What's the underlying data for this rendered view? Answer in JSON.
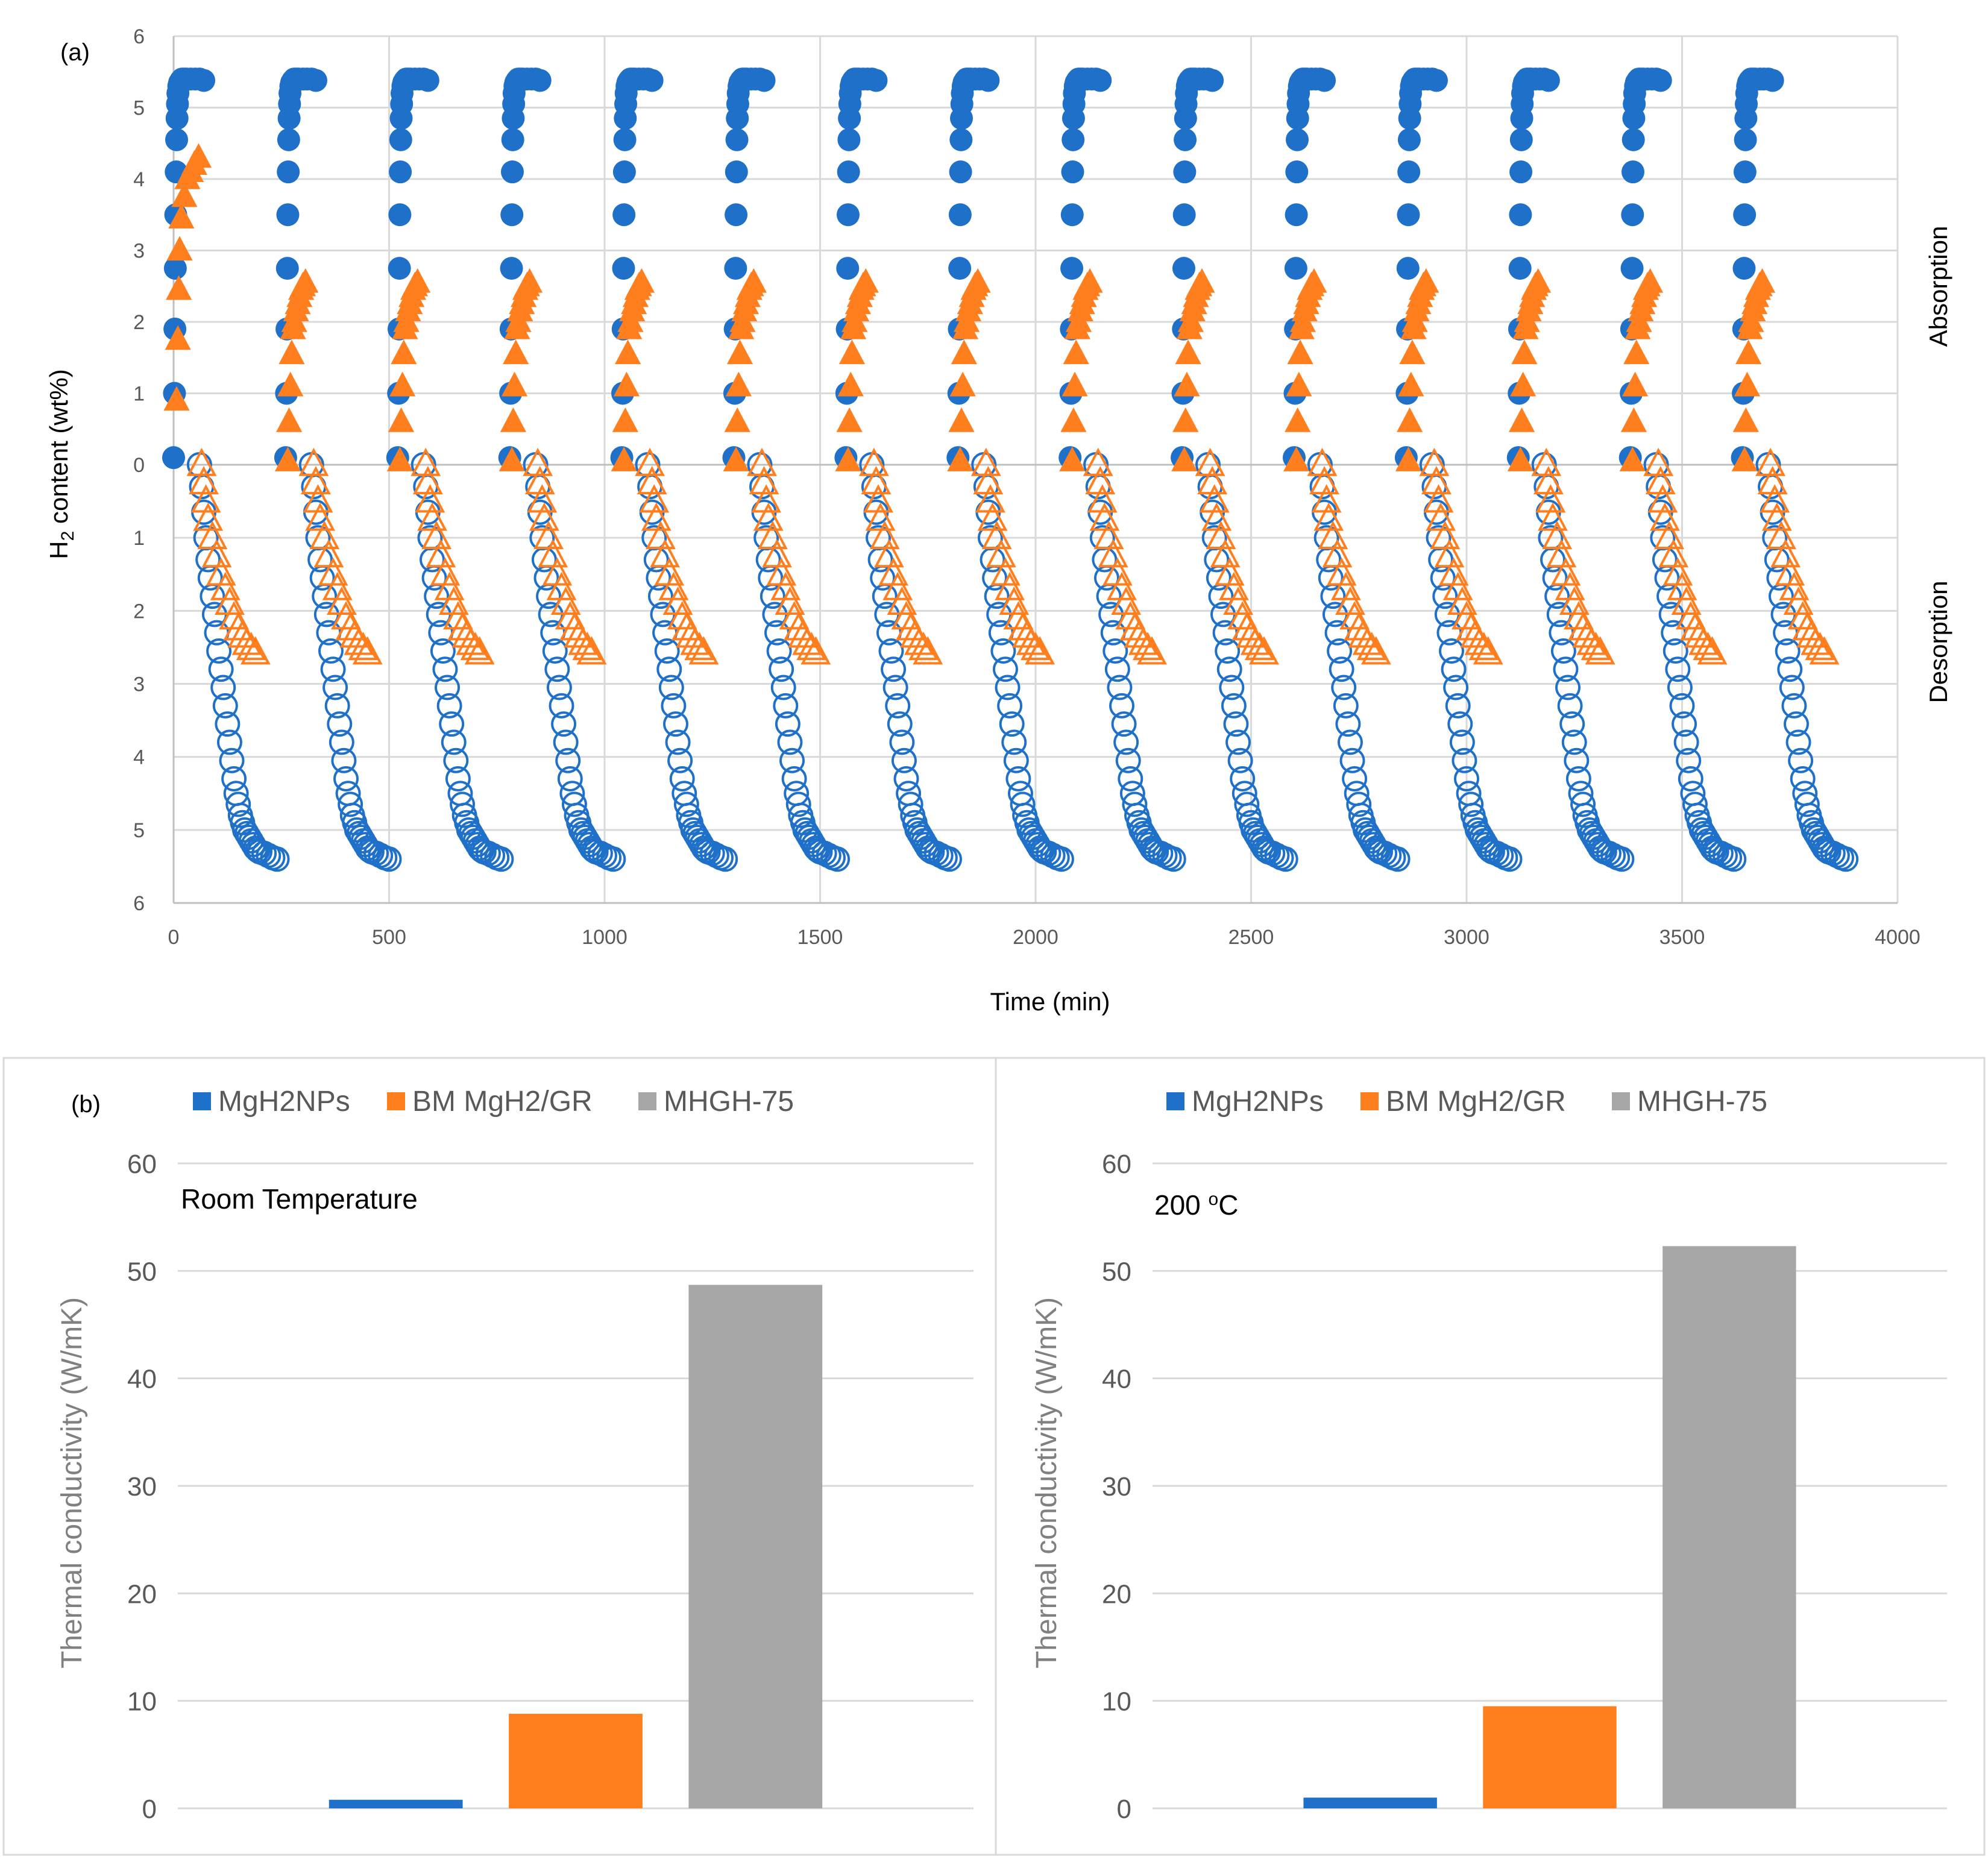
{
  "colors": {
    "blue": "#1f70c8",
    "orange": "#ff7f1f",
    "gray": "#a6a6a6",
    "grid": "#d9d9d9",
    "axis": "#bfbfbf"
  },
  "panel_a_label": "(a)",
  "panel_b_label": "(b)",
  "chart_data": [
    {
      "type": "scatter",
      "panel": "(a)",
      "title": "",
      "xlabel": "Time (min)",
      "ylabel": "H2 content (wt%)",
      "ylabel_parts": {
        "main": "H",
        "sub": "2",
        "rest": " content (wt%)"
      },
      "xlim": [
        0,
        4000
      ],
      "x_ticks": [
        0,
        500,
        1000,
        1500,
        2000,
        2500,
        3000,
        3500,
        4000
      ],
      "y_ticks_absorption": [
        0,
        1,
        2,
        3,
        4,
        5,
        6
      ],
      "y_ticks_desorption": [
        1,
        2,
        3,
        4,
        5,
        6
      ],
      "region_labels": {
        "absorption": "Absorption",
        "desorption": "Desorption"
      },
      "grid": true,
      "cycles": 15,
      "cycle_start_times": [
        0,
        260,
        520,
        780,
        1040,
        1300,
        1560,
        1820,
        2080,
        2340,
        2600,
        2860,
        3120,
        3380,
        3640
      ],
      "series": [
        {
          "name": "MgH2NPs absorption",
          "marker": "filled-circle",
          "color": "blue",
          "region": "absorption",
          "cycle_points": [
            [
              0,
              0.1
            ],
            [
              2,
              1.0
            ],
            [
              3,
              1.9
            ],
            [
              4,
              2.75
            ],
            [
              5,
              3.5
            ],
            [
              6,
              4.1
            ],
            [
              7,
              4.55
            ],
            [
              8,
              4.85
            ],
            [
              9,
              5.05
            ],
            [
              10,
              5.2
            ],
            [
              12,
              5.3
            ],
            [
              14,
              5.35
            ],
            [
              17,
              5.38
            ],
            [
              20,
              5.4
            ],
            [
              25,
              5.4
            ],
            [
              30,
              5.4
            ],
            [
              40,
              5.4
            ],
            [
              50,
              5.4
            ],
            [
              60,
              5.4
            ],
            [
              70,
              5.38
            ]
          ]
        },
        {
          "name": "Composite absorption",
          "marker": "filled-triangle",
          "color": "orange",
          "region": "absorption",
          "first_cycle_points": [
            [
              7,
              0.9
            ],
            [
              10,
              1.75
            ],
            [
              12,
              2.45
            ],
            [
              14,
              3.0
            ],
            [
              18,
              3.45
            ],
            [
              25,
              3.75
            ],
            [
              32,
              4.0
            ],
            [
              40,
              4.1
            ],
            [
              48,
              4.2
            ],
            [
              58,
              4.3
            ]
          ],
          "cycle_points": [
            [
              5,
              0.05
            ],
            [
              8,
              0.6
            ],
            [
              11,
              1.1
            ],
            [
              14,
              1.55
            ],
            [
              17,
              1.9
            ],
            [
              20,
              2.0
            ],
            [
              24,
              2.15
            ],
            [
              28,
              2.25
            ],
            [
              32,
              2.35
            ],
            [
              36,
              2.45
            ],
            [
              40,
              2.5
            ],
            [
              46,
              2.55
            ]
          ]
        },
        {
          "name": "MgH2NPs desorption",
          "marker": "open-circle",
          "color": "blue",
          "region": "desorption",
          "cycle_points": [
            [
              60,
              0.0
            ],
            [
              65,
              0.3
            ],
            [
              70,
              0.65
            ],
            [
              75,
              1.0
            ],
            [
              80,
              1.3
            ],
            [
              85,
              1.55
            ],
            [
              90,
              1.8
            ],
            [
              95,
              2.05
            ],
            [
              100,
              2.3
            ],
            [
              105,
              2.55
            ],
            [
              110,
              2.8
            ],
            [
              115,
              3.05
            ],
            [
              120,
              3.3
            ],
            [
              125,
              3.55
            ],
            [
              130,
              3.8
            ],
            [
              135,
              4.05
            ],
            [
              140,
              4.3
            ],
            [
              145,
              4.5
            ],
            [
              150,
              4.65
            ],
            [
              155,
              4.8
            ],
            [
              160,
              4.9
            ],
            [
              165,
              5.0
            ],
            [
              170,
              5.05
            ],
            [
              175,
              5.1
            ],
            [
              180,
              5.15
            ],
            [
              185,
              5.2
            ],
            [
              190,
              5.25
            ],
            [
              195,
              5.28
            ],
            [
              200,
              5.3
            ],
            [
              210,
              5.32
            ],
            [
              220,
              5.35
            ],
            [
              230,
              5.38
            ],
            [
              240,
              5.4
            ]
          ]
        },
        {
          "name": "Composite desorption",
          "marker": "open-triangle",
          "color": "orange",
          "region": "desorption",
          "cycle_points": [
            [
              65,
              0.0
            ],
            [
              70,
              0.25
            ],
            [
              75,
              0.5
            ],
            [
              80,
              0.75
            ],
            [
              90,
              1.0
            ],
            [
              100,
              1.25
            ],
            [
              110,
              1.5
            ],
            [
              120,
              1.7
            ],
            [
              130,
              1.9
            ],
            [
              140,
              2.1
            ],
            [
              150,
              2.25
            ],
            [
              160,
              2.35
            ],
            [
              170,
              2.45
            ],
            [
              180,
              2.52
            ],
            [
              190,
              2.58
            ]
          ]
        }
      ]
    },
    {
      "type": "bar",
      "panel": "(b)",
      "title": "Room Temperature",
      "xlabel": "",
      "ylabel": "Thermal conductivity (W/mK)",
      "ylim": [
        0,
        60
      ],
      "y_ticks": [
        0,
        10,
        20,
        30,
        40,
        50,
        60
      ],
      "legend_position": "top",
      "series": [
        {
          "name": "MgH2NPs",
          "color": "blue",
          "value": 0.8
        },
        {
          "name": "BM MgH2/GR",
          "color": "orange",
          "value": 8.8
        },
        {
          "name": "MHGH-75",
          "color": "gray",
          "value": 48.7
        }
      ]
    },
    {
      "type": "bar",
      "panel": "(b)",
      "title": "200 °C",
      "title_parts": {
        "main": "200 ",
        "sup": "o",
        "rest": "C"
      },
      "xlabel": "",
      "ylabel": "Thermal conductivity (W/mK)",
      "ylim": [
        0,
        60
      ],
      "y_ticks": [
        0,
        10,
        20,
        30,
        40,
        50,
        60
      ],
      "legend_position": "top",
      "series": [
        {
          "name": "MgH2NPs",
          "color": "blue",
          "value": 1.0
        },
        {
          "name": "BM MgH2/GR",
          "color": "orange",
          "value": 9.5
        },
        {
          "name": "MHGH-75",
          "color": "gray",
          "value": 52.3
        }
      ]
    }
  ]
}
